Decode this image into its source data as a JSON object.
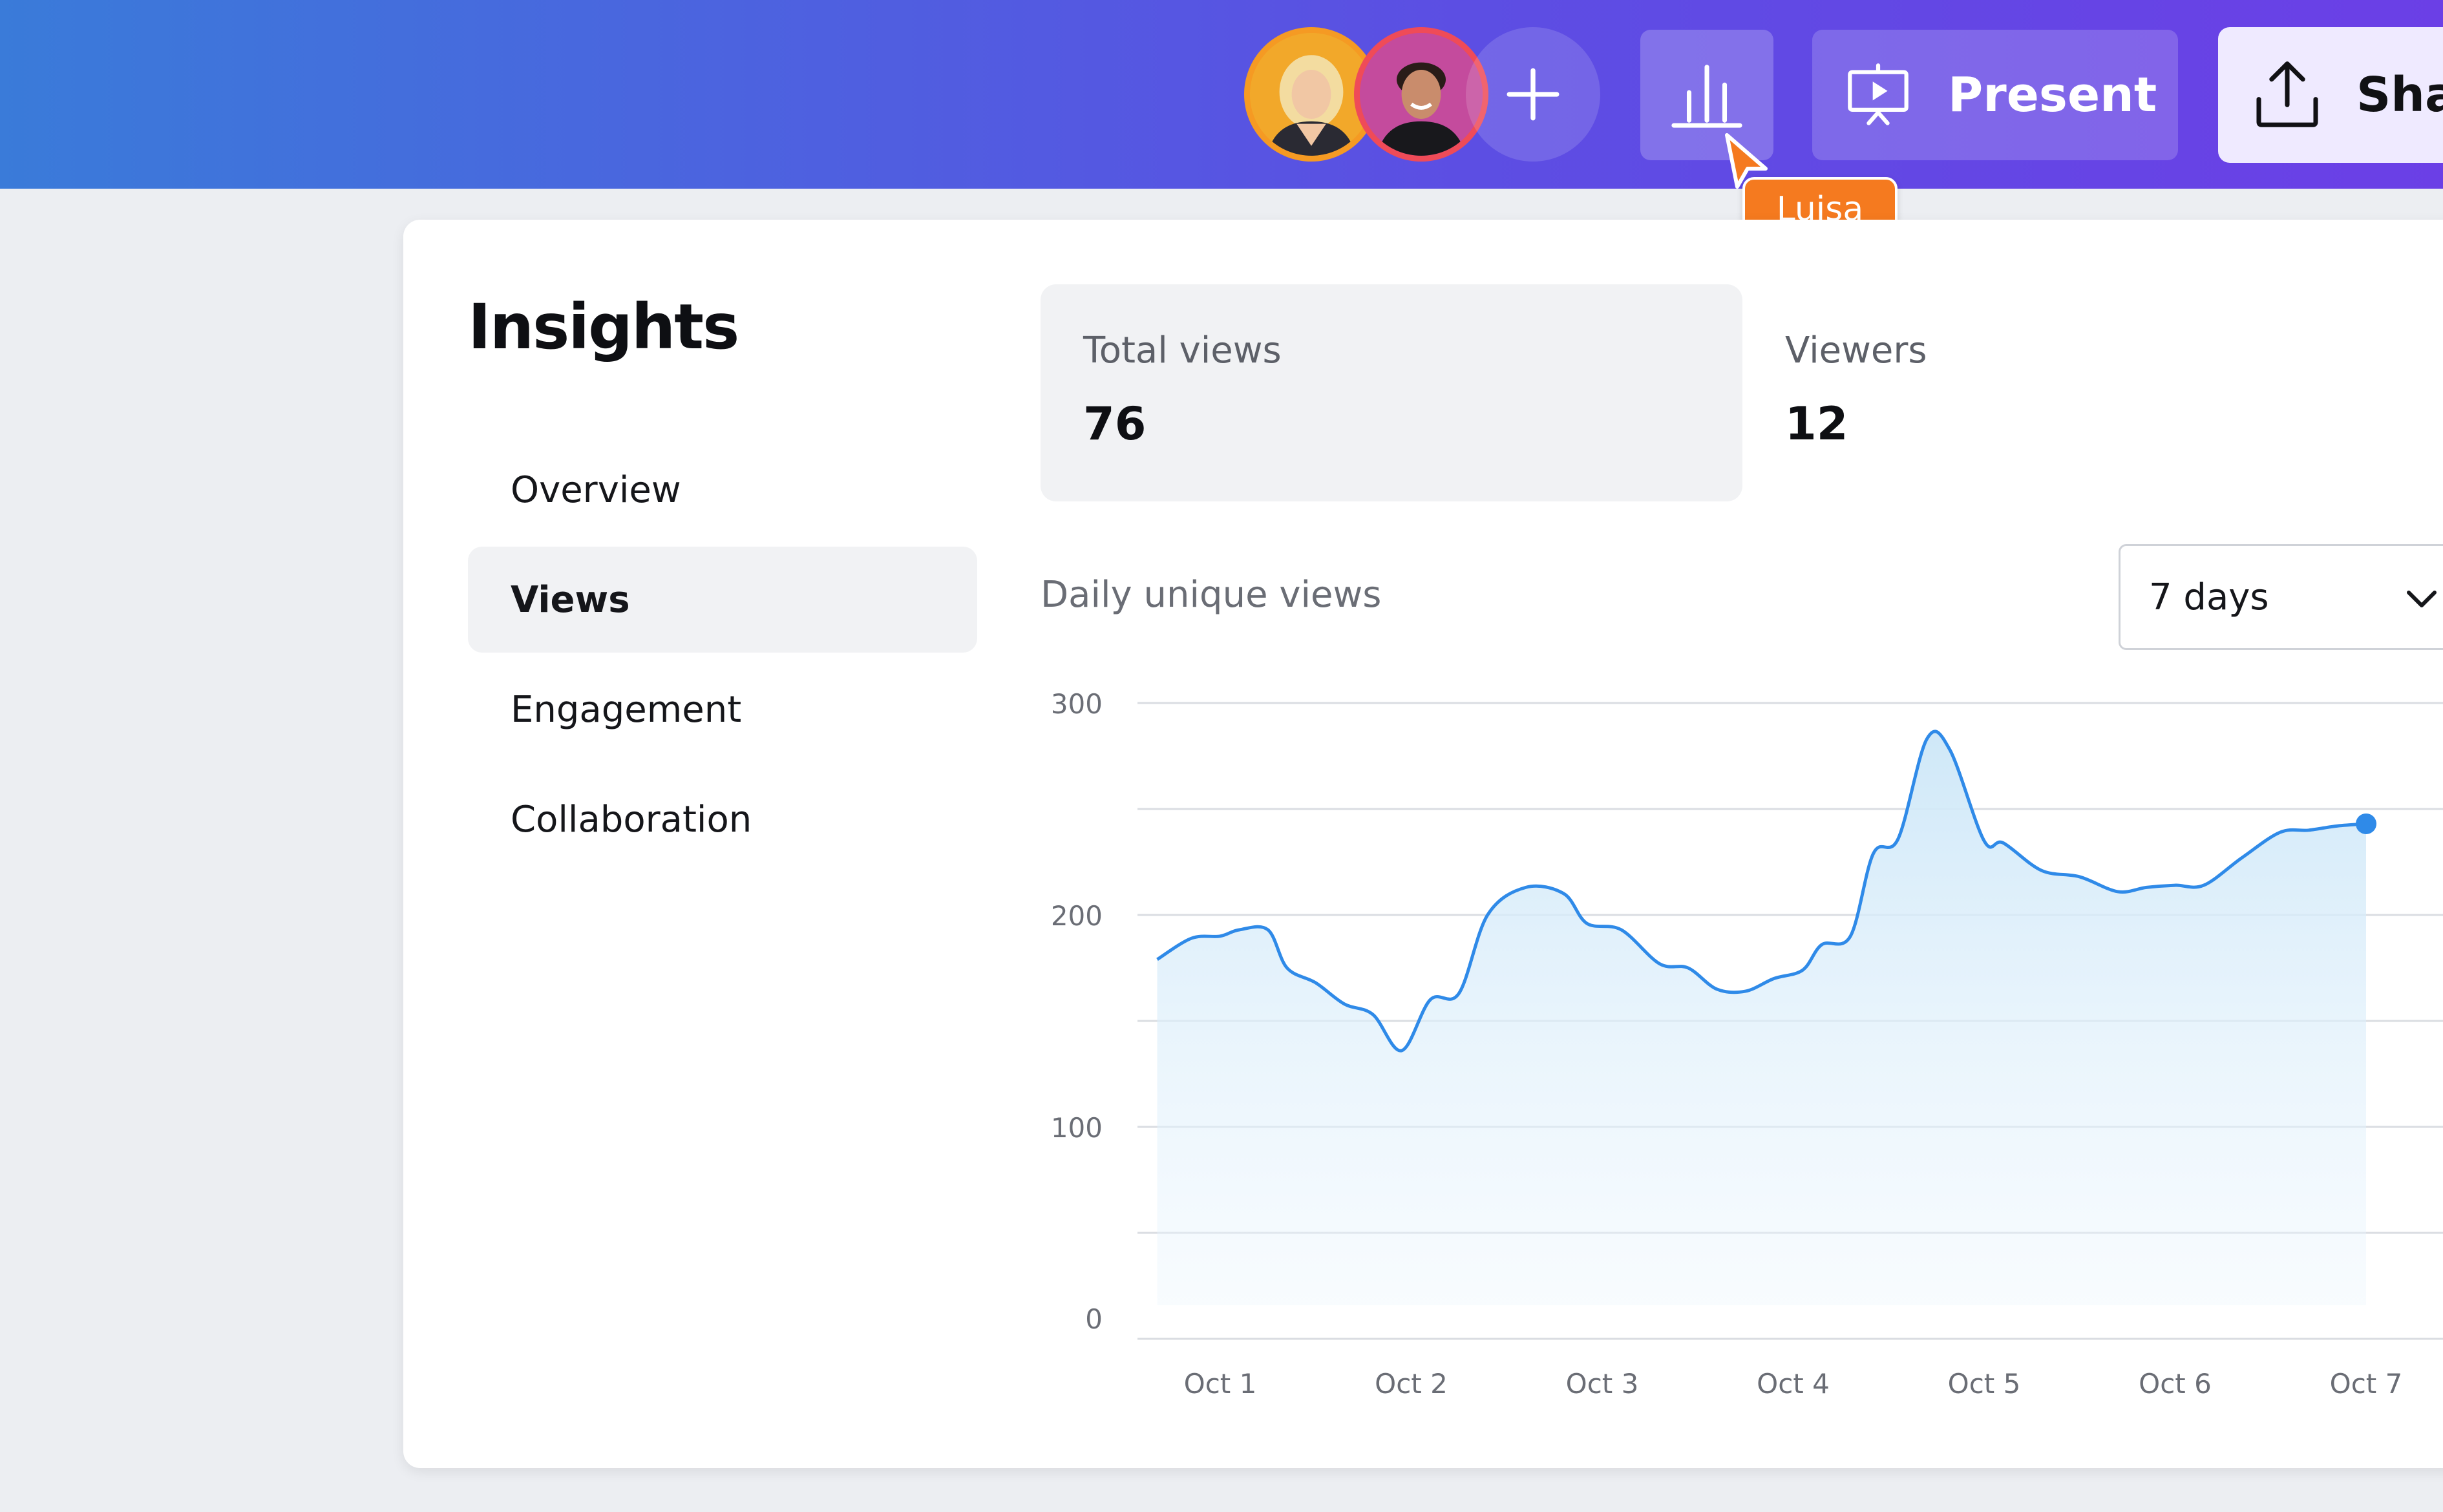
{
  "topbar": {
    "collaborators": [
      {
        "name": "collaborator-1",
        "border_color": "#f59a23"
      },
      {
        "name": "collaborator-2",
        "border_color": "#ef4b58"
      }
    ],
    "add_icon": "plus-icon",
    "insights_icon": "bar-chart-icon",
    "present_icon": "presentation-screen-icon",
    "present_label": "Present",
    "share_icon": "upload-icon",
    "share_label": "Sha",
    "cursor_label": "Luisa",
    "cursor_color": "#f57a1f"
  },
  "insights": {
    "title": "Insights",
    "nav": [
      {
        "label": "Overview",
        "active": false
      },
      {
        "label": "Views",
        "active": true
      },
      {
        "label": "Engagement",
        "active": false
      },
      {
        "label": "Collaboration",
        "active": false
      }
    ],
    "stats": {
      "total_views_label": "Total views",
      "total_views_value": "76",
      "viewers_label": "Viewers",
      "viewers_value": "12"
    },
    "chart_title": "Daily unique views",
    "range_value": "7 days"
  },
  "chart_data": {
    "type": "area",
    "title": "Daily unique views",
    "xlabel": "",
    "ylabel": "",
    "ylim": [
      0,
      300
    ],
    "y_ticks": [
      0,
      100,
      200,
      300
    ],
    "y_gridlines": [
      0,
      50,
      100,
      150,
      200,
      250,
      300
    ],
    "x_ticks": [
      "Oct 1",
      "Oct 2",
      "Oct 3",
      "Oct 4",
      "Oct 5",
      "Oct 6",
      "Oct 7"
    ],
    "x_range": [
      0.67,
      7.0
    ],
    "line_color": "#2f8ae8",
    "fill_color": "#d6ecfa",
    "grid": true,
    "series": [
      {
        "x": [
          0.67,
          0.85,
          1.0,
          1.1,
          1.25,
          1.35,
          1.5,
          1.65,
          1.8,
          1.95,
          2.1,
          2.25,
          2.4,
          2.6,
          2.8,
          2.92,
          3.1,
          3.3,
          3.45,
          3.6,
          3.75,
          3.9,
          4.05,
          4.15,
          4.3,
          4.42,
          4.55,
          4.7,
          4.82,
          5.0,
          5.1,
          5.3,
          5.5,
          5.7,
          5.85,
          6.0,
          6.15,
          6.35,
          6.55,
          6.7,
          6.85,
          7.0
        ],
        "values": [
          179,
          189,
          190,
          193,
          193,
          175,
          168,
          158,
          153,
          136,
          160,
          163,
          200,
          213,
          210,
          196,
          193,
          177,
          175,
          165,
          164,
          170,
          174,
          186,
          190,
          229,
          236,
          283,
          278,
          235,
          234,
          221,
          218,
          211,
          213,
          214,
          214,
          227,
          239,
          240,
          242,
          243
        ]
      }
    ]
  }
}
